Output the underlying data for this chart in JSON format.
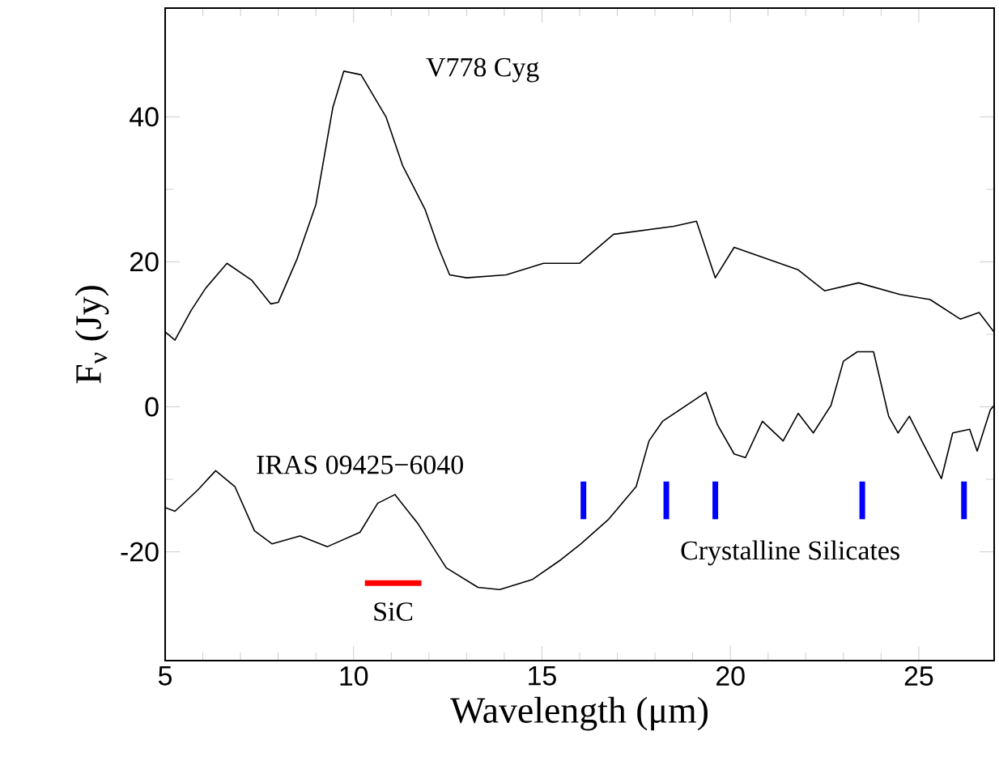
{
  "chart_data": {
    "type": "line",
    "xlabel": "Wavelength (μm)",
    "ylabel": "F$_{ν}$ (Jy)",
    "xlim": [
      5,
      27
    ],
    "ylim": [
      -35,
      55
    ],
    "xticks": [
      5,
      10,
      15,
      20,
      25
    ],
    "yticks": [
      -20,
      0,
      20,
      40
    ],
    "grid": false,
    "series": [
      {
        "color": "#000000",
        "x": [
          5.01,
          5.26,
          5.69,
          6.08,
          6.64,
          7.29,
          7.8,
          8.0,
          8.5,
          9.0,
          9.45,
          9.74,
          10.2,
          10.86,
          11.3,
          11.9,
          12.25,
          12.55,
          13.0,
          14.05,
          15.04,
          16.0,
          16.9,
          18.5,
          19.1,
          19.6,
          20.1,
          21.8,
          22.5,
          23.4,
          24.5,
          25.3,
          26.1,
          26.6,
          27.0
        ],
        "values": [
          10.3,
          9.2,
          13.3,
          16.4,
          19.8,
          17.5,
          14.2,
          14.4,
          20.4,
          27.9,
          41.3,
          46.3,
          45.8,
          40,
          33.3,
          27.2,
          22,
          18.2,
          17.8,
          18.2,
          19.8,
          19.8,
          23.8,
          24.9,
          25.6,
          17.8,
          22,
          18.9,
          16,
          17.1,
          15.5,
          14.8,
          12.1,
          13,
          10.3
        ]
      },
      {
        "color": "#000000",
        "x": [
          5.0,
          5.26,
          5.86,
          6.34,
          6.85,
          7.37,
          7.84,
          8.58,
          9.3,
          10.17,
          10.64,
          11.1,
          11.72,
          12.46,
          13.3,
          13.88,
          14.75,
          15.5,
          16.03,
          16.77,
          17.5,
          17.84,
          18.2,
          19.35,
          19.66,
          20.1,
          20.4,
          20.85,
          21.4,
          21.8,
          22.2,
          22.67,
          23.0,
          23.37,
          23.8,
          24.2,
          24.45,
          24.75,
          25.1,
          25.6,
          25.9,
          26.35,
          26.55,
          26.9,
          27.0
        ],
        "values": [
          -13.9,
          -14.4,
          -11.5,
          -8.8,
          -11,
          -17.1,
          -18.9,
          -17.8,
          -19.3,
          -17.3,
          -13.3,
          -12.1,
          -16.2,
          -22.2,
          -24.9,
          -25.2,
          -23.8,
          -21.1,
          -18.9,
          -15.5,
          -11,
          -4.7,
          -2,
          2,
          -2.5,
          -6.5,
          -7,
          -2,
          -4.7,
          -0.9,
          -3.6,
          0.2,
          6.3,
          7.6,
          7.6,
          -1.3,
          -3.6,
          -1.3,
          -4.9,
          -9.9,
          -3.6,
          -3.1,
          -6.1,
          -0.4,
          0.2
        ]
      },
      {
        "color": "#ff0000",
        "x": [
          10.3,
          11.8
        ],
        "values": [
          -24.3,
          -24.3
        ]
      },
      {
        "color": "#0000ff",
        "x": [
          16.1,
          16.1
        ],
        "values": [
          -10.3,
          -15.5
        ]
      },
      {
        "color": "#0000ff",
        "x": [
          18.3,
          18.3
        ],
        "values": [
          -10.3,
          -15.5
        ]
      },
      {
        "color": "#0000ff",
        "x": [
          19.6,
          19.6
        ],
        "values": [
          -10.3,
          -15.5
        ]
      },
      {
        "color": "#0000ff",
        "x": [
          23.5,
          23.5
        ],
        "values": [
          -10.3,
          -15.5
        ]
      },
      {
        "color": "#0000ff",
        "x": [
          26.2,
          26.2
        ],
        "values": [
          -10.3,
          -15.5
        ]
      }
    ],
    "annotations": [
      "V778 Cyg",
      "IRAS 09425−6040",
      "SiC",
      "Crystalline Silicates"
    ]
  }
}
